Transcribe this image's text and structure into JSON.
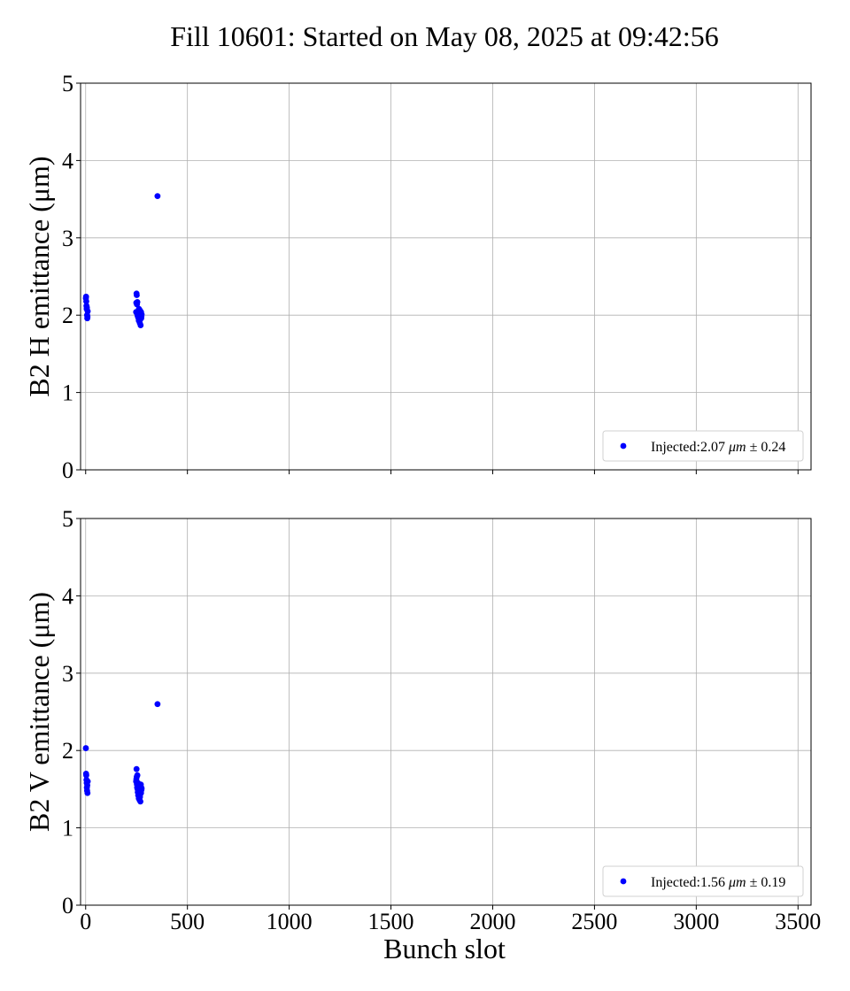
{
  "chart_data": {
    "type": "scatter",
    "title": "Fill 10601: Started on May 08, 2025 at 09:42:56",
    "xlabel": "Bunch slot",
    "xlim": [
      -25,
      3564
    ],
    "xticks": [
      "0",
      "500",
      "1000",
      "1500",
      "2000",
      "2500",
      "3000",
      "3500"
    ],
    "grid": true,
    "marker_color": "#0000ff",
    "panels": [
      {
        "name": "horizontal",
        "ylabel": "B2 H emittance (μm)",
        "ylim": [
          0,
          5
        ],
        "yticks": [
          "0",
          "1",
          "2",
          "3",
          "4",
          "5"
        ],
        "legend": {
          "placement": "lower-right",
          "prefix": "Injected:2.07",
          "unit": "μm",
          "suffix": "± 0.24"
        },
        "series": [
          {
            "x": [
              1,
              2,
              3,
              4,
              5,
              6,
              7,
              8,
              9,
              10,
              248,
              249,
              250,
              251,
              252,
              253,
              254,
              255,
              256,
              257,
              258,
              259,
              260,
              261,
              262,
              263,
              264,
              265,
              266,
              267,
              268,
              269,
              270,
              271,
              272,
              273,
              274,
              275,
              353
            ],
            "y": [
              2.22,
              2.24,
              2.18,
              2.12,
              2.08,
              2.1,
              2.0,
              1.96,
              1.98,
              2.05,
              2.04,
              2.16,
              2.28,
              2.26,
              2.14,
              2.02,
              2.17,
              2.0,
              1.99,
              2.03,
              1.97,
              2.05,
              2.01,
              1.93,
              2.08,
              1.98,
              2.03,
              2.0,
              1.9,
              2.06,
              1.95,
              1.98,
              1.87,
              2.02,
              2.04,
              1.96,
              1.99,
              2.01,
              3.54
            ]
          }
        ]
      },
      {
        "name": "vertical",
        "ylabel": "B2 V emittance (μm)",
        "ylim": [
          0,
          5
        ],
        "yticks": [
          "0",
          "1",
          "2",
          "3",
          "4",
          "5"
        ],
        "legend": {
          "placement": "lower-right",
          "prefix": "Injected:1.56",
          "unit": "μm",
          "suffix": "± 0.19"
        },
        "series": [
          {
            "x": [
              1,
              2,
              3,
              4,
              5,
              6,
              7,
              8,
              9,
              10,
              248,
              249,
              250,
              251,
              252,
              253,
              254,
              255,
              256,
              257,
              258,
              259,
              260,
              261,
              262,
              263,
              264,
              265,
              266,
              267,
              268,
              269,
              270,
              271,
              272,
              273,
              274,
              275,
              353
            ],
            "y": [
              2.03,
              1.7,
              1.68,
              1.62,
              1.58,
              1.52,
              1.48,
              1.55,
              1.45,
              1.6,
              1.6,
              1.63,
              1.76,
              1.66,
              1.56,
              1.52,
              1.68,
              1.5,
              1.46,
              1.58,
              1.42,
              1.55,
              1.5,
              1.38,
              1.52,
              1.44,
              1.48,
              1.36,
              1.55,
              1.4,
              1.47,
              1.34,
              1.5,
              1.56,
              1.45,
              1.52,
              1.49,
              1.51,
              2.6
            ]
          }
        ]
      }
    ]
  }
}
